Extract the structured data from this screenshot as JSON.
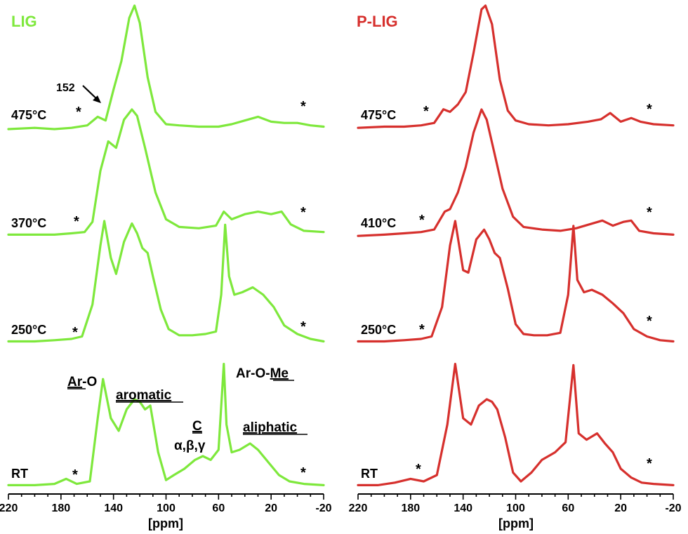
{
  "chart_data": [
    {
      "type": "line",
      "title": "LIG",
      "title_color": "#7ee83c",
      "line_color": "#7ee83c",
      "xlabel": "[ppm]",
      "xlim": [
        220,
        -20
      ],
      "x_reversed": true,
      "x_ticks": [
        "220",
        "180",
        "140",
        "100",
        "60",
        "20",
        "-20"
      ],
      "series": [
        {
          "name": "475°C",
          "spinning_sideband_marker": "*",
          "x": [
            220,
            200,
            185,
            172,
            160,
            152,
            146,
            140,
            134,
            128,
            124,
            120,
            114,
            108,
            100,
            90,
            75,
            60,
            50,
            40,
            30,
            20,
            10,
            0,
            -10,
            -20
          ],
          "y": [
            0.0,
            0.01,
            0.0,
            0.01,
            0.03,
            0.1,
            0.07,
            0.32,
            0.55,
            0.9,
            1.0,
            0.86,
            0.42,
            0.14,
            0.04,
            0.03,
            0.02,
            0.02,
            0.04,
            0.07,
            0.1,
            0.06,
            0.05,
            0.05,
            0.03,
            0.02
          ]
        },
        {
          "name": "370°C",
          "spinning_sideband_marker": "*",
          "x": [
            220,
            200,
            185,
            172,
            162,
            156,
            150,
            144,
            138,
            132,
            126,
            122,
            116,
            108,
            100,
            90,
            75,
            62,
            56,
            50,
            40,
            30,
            20,
            12,
            5,
            -5,
            -20
          ],
          "y": [
            0.02,
            0.02,
            0.02,
            0.03,
            0.04,
            0.12,
            0.52,
            0.75,
            0.7,
            0.92,
            1.0,
            0.95,
            0.7,
            0.35,
            0.14,
            0.08,
            0.07,
            0.09,
            0.2,
            0.14,
            0.18,
            0.2,
            0.18,
            0.2,
            0.1,
            0.05,
            0.04
          ]
        },
        {
          "name": "250°C",
          "spinning_sideband_marker": "*",
          "x": [
            220,
            200,
            185,
            172,
            164,
            156,
            150,
            147,
            142,
            138,
            132,
            126,
            122,
            118,
            114,
            110,
            104,
            98,
            90,
            80,
            70,
            62,
            58,
            55,
            52,
            48,
            42,
            34,
            26,
            18,
            10,
            0,
            -10,
            -20
          ],
          "y": [
            0.02,
            0.02,
            0.03,
            0.04,
            0.06,
            0.32,
            0.8,
            1.0,
            0.7,
            0.57,
            0.83,
            0.98,
            0.9,
            0.78,
            0.74,
            0.55,
            0.28,
            0.12,
            0.07,
            0.07,
            0.08,
            0.1,
            0.4,
            0.97,
            0.55,
            0.4,
            0.42,
            0.46,
            0.4,
            0.3,
            0.15,
            0.08,
            0.04,
            0.02
          ]
        },
        {
          "name": "RT",
          "spinning_sideband_marker": "*",
          "x": [
            220,
            200,
            185,
            176,
            168,
            158,
            152,
            148,
            142,
            136,
            130,
            124,
            120,
            116,
            112,
            106,
            100,
            94,
            86,
            78,
            72,
            66,
            60,
            56,
            54,
            50,
            44,
            36,
            30,
            22,
            14,
            6,
            -5,
            -20
          ],
          "y": [
            0.02,
            0.02,
            0.03,
            0.07,
            0.03,
            0.05,
            0.55,
            0.86,
            0.55,
            0.45,
            0.62,
            0.7,
            0.68,
            0.62,
            0.65,
            0.28,
            0.06,
            0.1,
            0.15,
            0.22,
            0.25,
            0.22,
            0.3,
            0.98,
            0.5,
            0.28,
            0.3,
            0.35,
            0.3,
            0.2,
            0.1,
            0.05,
            0.03,
            0.02
          ]
        }
      ],
      "peak_annotations": [
        {
          "text": "152",
          "ppm": 152,
          "series": "475°C"
        }
      ],
      "region_labels": [
        {
          "parts": [
            {
              "text": "Ar",
              "underline": true
            },
            {
              "text": "-O",
              "underline": false
            }
          ]
        },
        {
          "parts": [
            {
              "text": "aromatic",
              "underline": true
            }
          ]
        },
        {
          "parts": [
            {
              "text": "C",
              "underline": true
            }
          ]
        },
        {
          "parts": [
            {
              "text": "α,β,γ",
              "underline": false
            }
          ]
        },
        {
          "parts": [
            {
              "text": "Ar-O-",
              "underline": false
            },
            {
              "text": "Me",
              "underline": true
            }
          ]
        },
        {
          "parts": [
            {
              "text": "aliphatic",
              "underline": true
            }
          ]
        }
      ]
    },
    {
      "type": "line",
      "title": "P-LIG",
      "title_color": "#d6302d",
      "line_color": "#d6302d",
      "xlabel": "[ppm]",
      "xlim": [
        220,
        -20
      ],
      "x_reversed": true,
      "x_ticks": [
        "220",
        "180",
        "140",
        "100",
        "60",
        "20",
        "-20"
      ],
      "series": [
        {
          "name": "475°C",
          "spinning_sideband_marker": "*",
          "x": [
            220,
            200,
            185,
            172,
            162,
            155,
            150,
            144,
            138,
            132,
            126,
            123,
            118,
            112,
            106,
            100,
            90,
            75,
            60,
            45,
            35,
            28,
            20,
            12,
            5,
            -5,
            -20
          ],
          "y": [
            0.01,
            0.02,
            0.02,
            0.03,
            0.05,
            0.16,
            0.14,
            0.2,
            0.3,
            0.62,
            0.97,
            1.0,
            0.85,
            0.4,
            0.15,
            0.07,
            0.04,
            0.03,
            0.04,
            0.06,
            0.08,
            0.13,
            0.06,
            0.09,
            0.06,
            0.04,
            0.03
          ]
        },
        {
          "name": "410°C",
          "spinning_sideband_marker": "*",
          "x": [
            220,
            200,
            185,
            172,
            162,
            154,
            150,
            144,
            138,
            132,
            126,
            122,
            116,
            110,
            102,
            94,
            80,
            66,
            54,
            44,
            34,
            26,
            18,
            12,
            6,
            -5,
            -20
          ],
          "y": [
            0.01,
            0.02,
            0.03,
            0.04,
            0.06,
            0.2,
            0.22,
            0.35,
            0.55,
            0.82,
            1.0,
            0.92,
            0.65,
            0.38,
            0.16,
            0.08,
            0.06,
            0.05,
            0.07,
            0.1,
            0.13,
            0.09,
            0.12,
            0.13,
            0.05,
            0.03,
            0.02
          ]
        },
        {
          "name": "250°C",
          "spinning_sideband_marker": "*",
          "x": [
            220,
            200,
            185,
            172,
            164,
            156,
            150,
            146,
            140,
            136,
            130,
            124,
            120,
            116,
            112,
            106,
            100,
            94,
            86,
            76,
            66,
            60,
            56,
            53,
            48,
            42,
            34,
            26,
            18,
            10,
            0,
            -10,
            -20
          ],
          "y": [
            0.02,
            0.02,
            0.03,
            0.04,
            0.06,
            0.3,
            0.8,
            1.0,
            0.6,
            0.58,
            0.85,
            0.93,
            0.85,
            0.74,
            0.7,
            0.45,
            0.16,
            0.08,
            0.07,
            0.07,
            0.09,
            0.4,
            0.96,
            0.52,
            0.42,
            0.44,
            0.4,
            0.33,
            0.25,
            0.12,
            0.06,
            0.03,
            0.02
          ]
        },
        {
          "name": "RT",
          "spinning_sideband_marker": "*",
          "x": [
            220,
            205,
            192,
            180,
            170,
            160,
            152,
            146,
            140,
            134,
            128,
            122,
            118,
            114,
            108,
            102,
            96,
            88,
            80,
            70,
            62,
            56,
            52,
            46,
            38,
            32,
            26,
            20,
            12,
            4,
            -5,
            -20
          ],
          "y": [
            0.02,
            0.02,
            0.04,
            0.07,
            0.05,
            0.1,
            0.5,
            0.98,
            0.55,
            0.5,
            0.65,
            0.7,
            0.68,
            0.62,
            0.4,
            0.12,
            0.05,
            0.12,
            0.22,
            0.28,
            0.36,
            0.97,
            0.43,
            0.38,
            0.43,
            0.35,
            0.28,
            0.15,
            0.08,
            0.04,
            0.03,
            0.02
          ]
        }
      ]
    }
  ]
}
